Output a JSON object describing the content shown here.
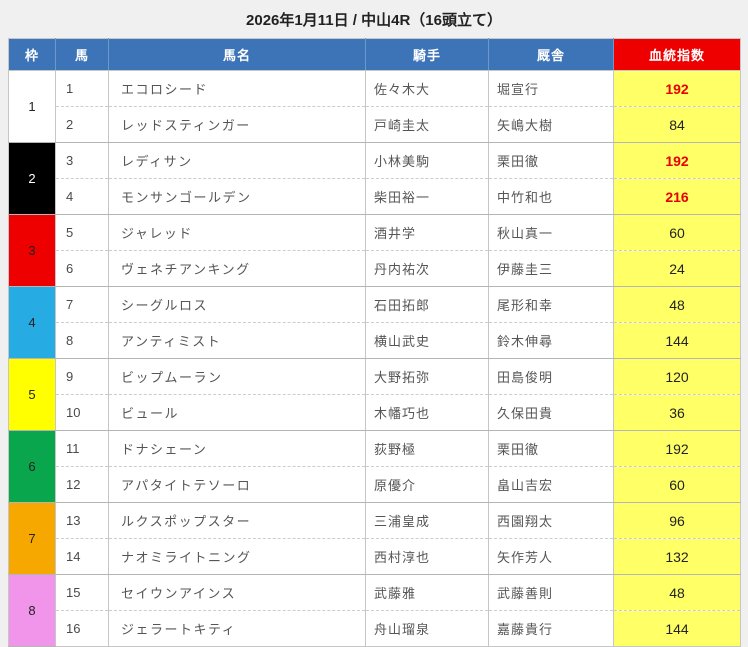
{
  "title": "2026年1月11日 / 中山4R（16頭立て）",
  "colors": {
    "page_background": "#f0f0f0",
    "header_blue": "#3d74b8",
    "header_index_red": "#ee0000",
    "index_cell_yellow": "#ffff66",
    "index_highlight_red": "#e60000",
    "grid_line": "#c6c6c6"
  },
  "table": {
    "headers": {
      "waku": "枠",
      "uma": "馬",
      "bamei": "馬名",
      "kishu": "騎手",
      "kyusha": "厩舎",
      "shisu": "血統指数"
    },
    "frames": [
      {
        "no": "1",
        "bg": "#ffffff",
        "text_color": "#222222",
        "horses": [
          {
            "num": "1",
            "name": "エコロシード",
            "jockey": "佐々木大",
            "stable": "堀宣行",
            "index": "192",
            "highlight": true
          },
          {
            "num": "2",
            "name": "レッドスティンガー",
            "jockey": "戸崎圭太",
            "stable": "矢嶋大樹",
            "index": "84",
            "highlight": false
          }
        ]
      },
      {
        "no": "2",
        "bg": "#000000",
        "text_color": "#ffffff",
        "horses": [
          {
            "num": "3",
            "name": "レディサン",
            "jockey": "小林美駒",
            "stable": "栗田徹",
            "index": "192",
            "highlight": true
          },
          {
            "num": "4",
            "name": "モンサンゴールデン",
            "jockey": "柴田裕一",
            "stable": "中竹和也",
            "index": "216",
            "highlight": true
          }
        ]
      },
      {
        "no": "3",
        "bg": "#ee0000",
        "text_color": "#222222",
        "horses": [
          {
            "num": "5",
            "name": "ジャレッド",
            "jockey": "酒井学",
            "stable": "秋山真一",
            "index": "60",
            "highlight": false
          },
          {
            "num": "6",
            "name": "ヴェネチアンキング",
            "jockey": "丹内祐次",
            "stable": "伊藤圭三",
            "index": "24",
            "highlight": false
          }
        ]
      },
      {
        "no": "4",
        "bg": "#26ace3",
        "text_color": "#222222",
        "horses": [
          {
            "num": "7",
            "name": "シーグルロス",
            "jockey": "石田拓郎",
            "stable": "尾形和幸",
            "index": "48",
            "highlight": false
          },
          {
            "num": "8",
            "name": "アンティミスト",
            "jockey": "横山武史",
            "stable": "鈴木伸尋",
            "index": "144",
            "highlight": false
          }
        ]
      },
      {
        "no": "5",
        "bg": "#ffff00",
        "text_color": "#222222",
        "horses": [
          {
            "num": "9",
            "name": "ビップムーラン",
            "jockey": "大野拓弥",
            "stable": "田島俊明",
            "index": "120",
            "highlight": false
          },
          {
            "num": "10",
            "name": "ビュール",
            "jockey": "木幡巧也",
            "stable": "久保田貴",
            "index": "36",
            "highlight": false
          }
        ]
      },
      {
        "no": "6",
        "bg": "#0aa64e",
        "text_color": "#222222",
        "horses": [
          {
            "num": "11",
            "name": "ドナシェーン",
            "jockey": "荻野極",
            "stable": "栗田徹",
            "index": "192",
            "highlight": false
          },
          {
            "num": "12",
            "name": "アパタイトテソーロ",
            "jockey": "原優介",
            "stable": "畠山吉宏",
            "index": "60",
            "highlight": false
          }
        ]
      },
      {
        "no": "7",
        "bg": "#f6a800",
        "text_color": "#222222",
        "horses": [
          {
            "num": "13",
            "name": "ルクスポップスター",
            "jockey": "三浦皇成",
            "stable": "西園翔太",
            "index": "96",
            "highlight": false
          },
          {
            "num": "14",
            "name": "ナオミライトニング",
            "jockey": "西村淳也",
            "stable": "矢作芳人",
            "index": "132",
            "highlight": false
          }
        ]
      },
      {
        "no": "8",
        "bg": "#f195ea",
        "text_color": "#222222",
        "horses": [
          {
            "num": "15",
            "name": "セイウンアインス",
            "jockey": "武藤雅",
            "stable": "武藤善則",
            "index": "48",
            "highlight": false
          },
          {
            "num": "16",
            "name": "ジェラートキティ",
            "jockey": "舟山瑠泉",
            "stable": "嘉藤貴行",
            "index": "144",
            "highlight": false
          }
        ]
      }
    ]
  }
}
